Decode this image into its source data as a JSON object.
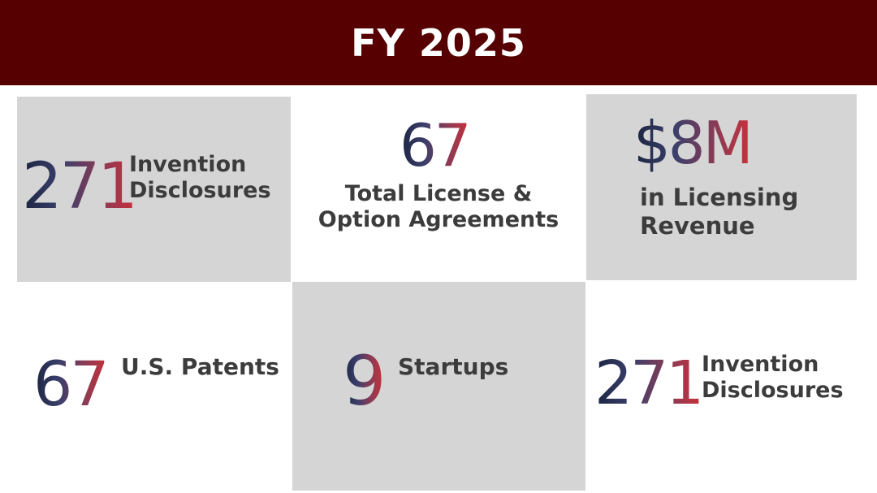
{
  "header": {
    "title": "FY 2025"
  },
  "stats": [
    {
      "value": "271",
      "label_line1": "Invention",
      "label_line2": "Disclosures"
    },
    {
      "value": "67",
      "label_line1": "Total License &",
      "label_line2": "Option Agreements"
    },
    {
      "value": "$8M",
      "label_line1": "in Licensing",
      "label_line2": "Revenue"
    },
    {
      "value": "67",
      "label_line1": "U.S. Patents"
    },
    {
      "value": "9",
      "label_line1": "Startups"
    },
    {
      "value": "271",
      "label_line1": "Invention",
      "label_line2": "Disclosures"
    }
  ],
  "colors": {
    "header_bg": "#560001",
    "tile_gray": "#d5d5d5",
    "number_gradient_start": "#1c2541",
    "number_gradient_end": "#c8303a",
    "label_text": "#3c3c3c"
  }
}
